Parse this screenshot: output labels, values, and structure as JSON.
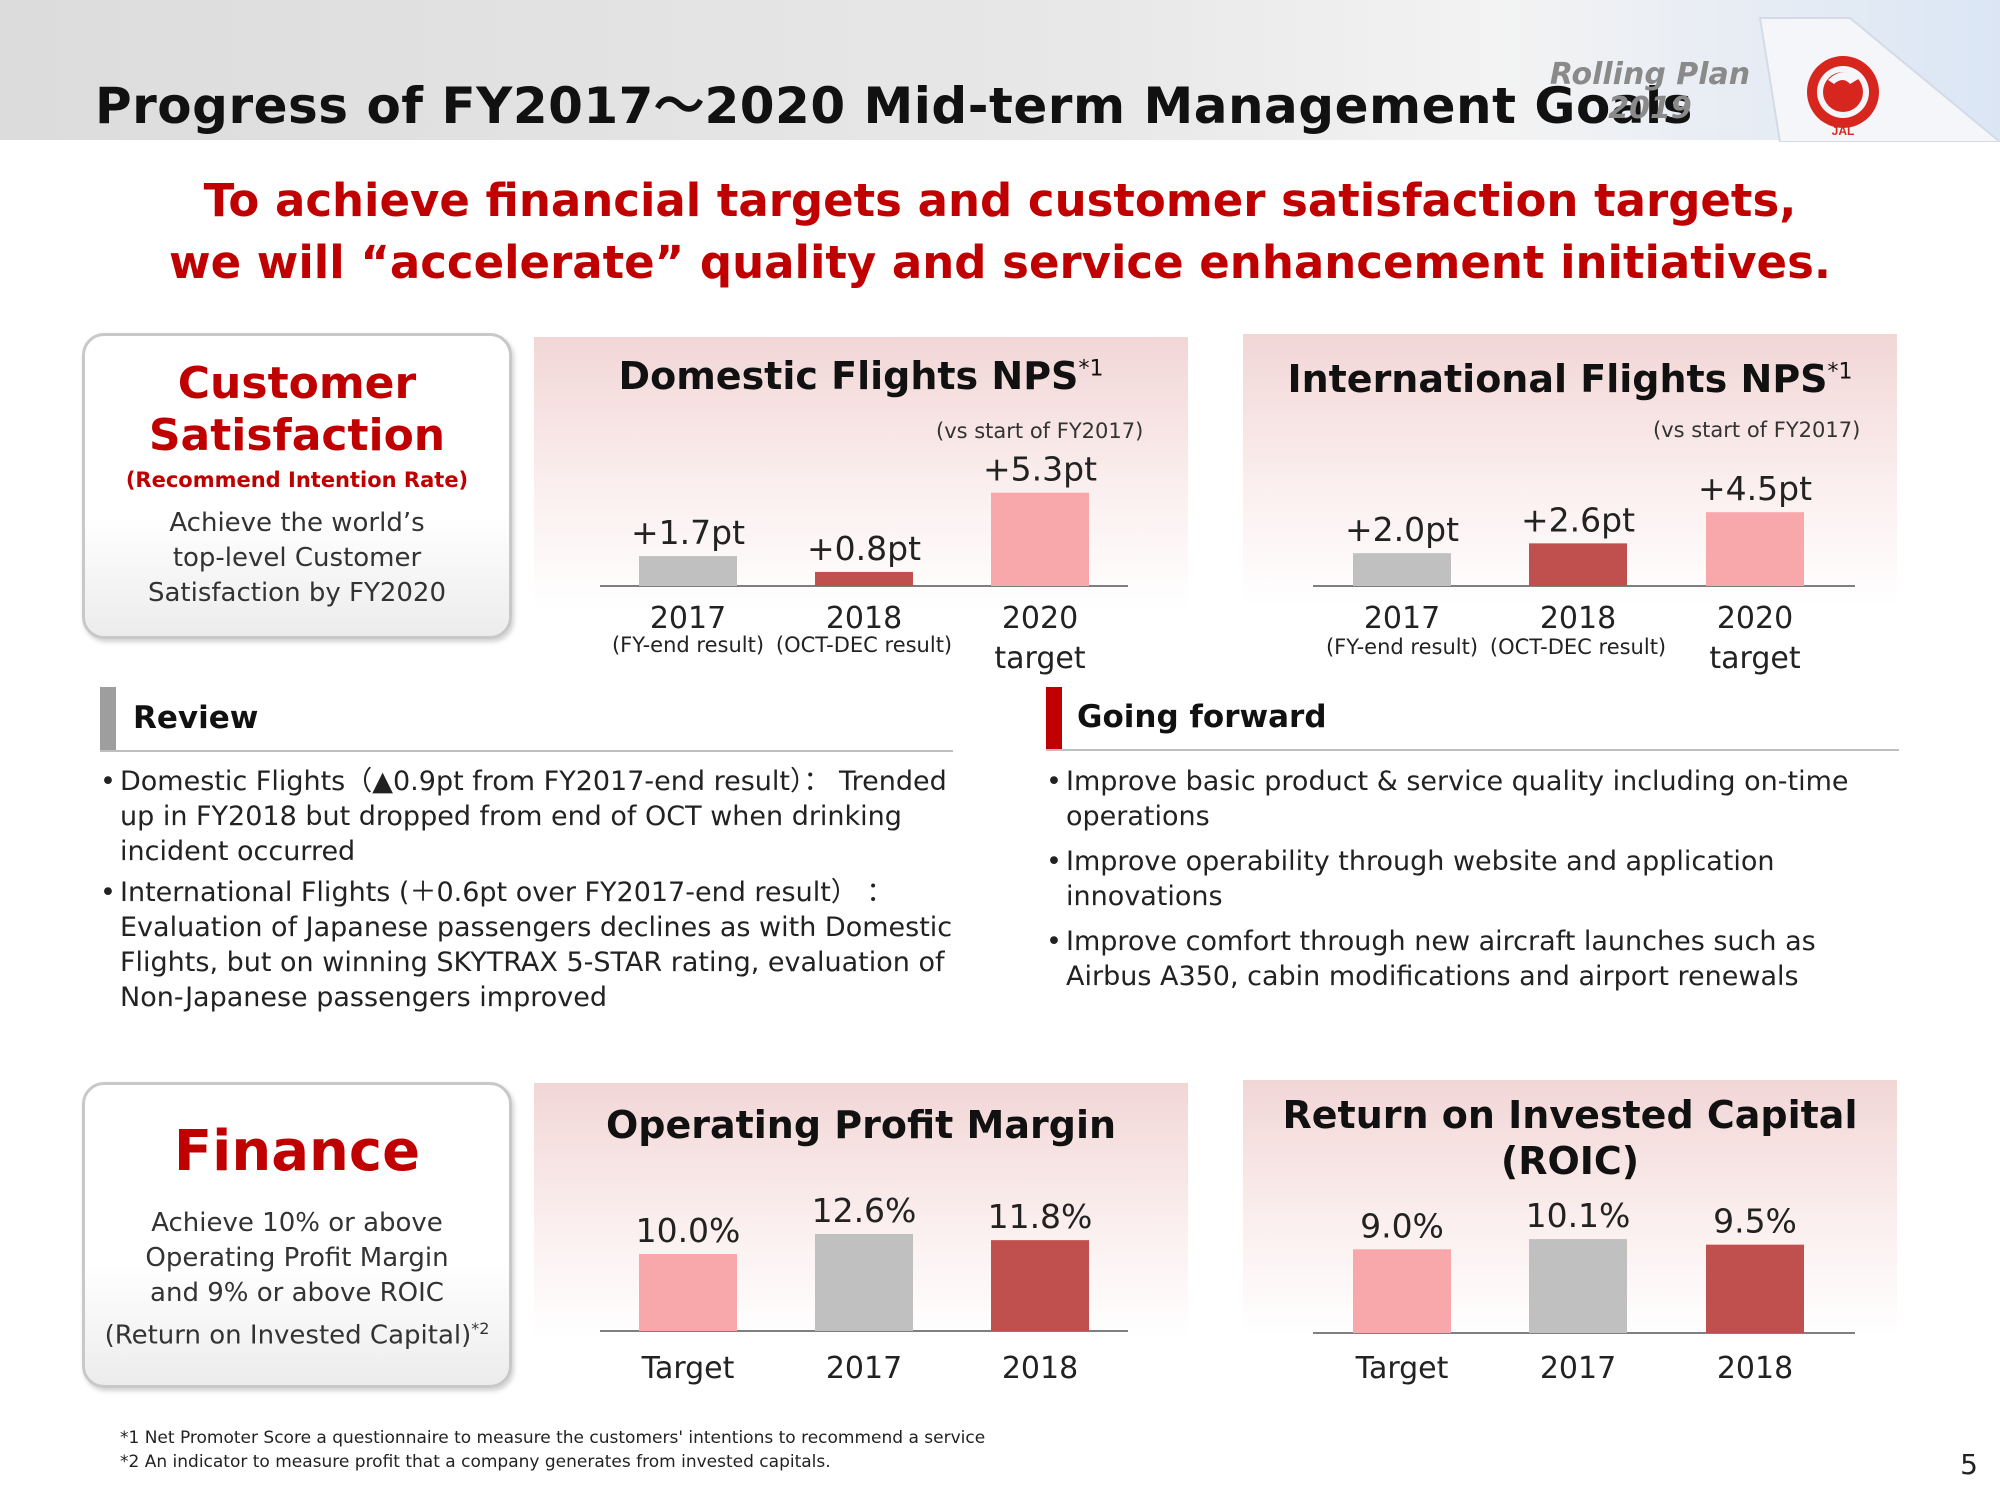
{
  "header": {
    "title": "Progress of FY2017～2020  Mid-term Management Goals",
    "rolling_plan": "Rolling Plan",
    "rolling_year": "2019",
    "logo_text": "JAL"
  },
  "headline": {
    "line1": "To achieve financial targets and customer satisfaction targets,",
    "line2": "we will “accelerate” quality and service enhancement initiatives."
  },
  "customer_card": {
    "title_line1": "Customer",
    "title_line2": "Satisfaction",
    "subtitle": "(Recommend Intention Rate)",
    "desc_line1": "Achieve the world’s",
    "desc_line2": "top-level Customer",
    "desc_line3": "Satisfaction by FY2020"
  },
  "finance_card": {
    "title": "Finance",
    "desc_line1": "Achieve 10% or above",
    "desc_line2": "Operating Profit Margin",
    "desc_line3": "and 9% or above ROIC",
    "desc_line4": "(Return on Invested Capital)",
    "desc_note": "*2"
  },
  "colors": {
    "gray": "#c0c0c0",
    "dark_red": "#c0504d",
    "pink": "#f8a8aa",
    "accent_red": "#c00000"
  },
  "chart_data": [
    {
      "type": "bar",
      "id": "domestic",
      "title": "Domestic Flights NPS",
      "title_note": "*1",
      "note": "(vs start of FY2017)",
      "categories": [
        "2017",
        "2018",
        "2020"
      ],
      "sublabels": [
        "(FY-end result)",
        "(OCT-DEC result)",
        "target"
      ],
      "values": [
        1.7,
        0.8,
        5.3
      ],
      "labels": [
        "+1.7pt",
        "+0.8pt",
        "+5.3pt"
      ],
      "colors": [
        "#c0c0c0",
        "#c0504d",
        "#f8a8aa"
      ],
      "ylim": [
        0,
        5.5
      ]
    },
    {
      "type": "bar",
      "id": "international",
      "title": "International Flights NPS",
      "title_note": "*1",
      "note": "(vs start of FY2017)",
      "categories": [
        "2017",
        "2018",
        "2020"
      ],
      "sublabels": [
        "(FY-end result)",
        "(OCT-DEC result)",
        "target"
      ],
      "values": [
        2.0,
        2.6,
        4.5
      ],
      "labels": [
        "+2.0pt",
        "+2.6pt",
        "+4.5pt"
      ],
      "colors": [
        "#c0c0c0",
        "#c0504d",
        "#f8a8aa"
      ],
      "ylim": [
        0,
        5.5
      ]
    },
    {
      "type": "bar",
      "id": "opm",
      "title": "Operating Profit Margin",
      "categories": [
        "Target",
        "2017",
        "2018"
      ],
      "values": [
        10.0,
        12.6,
        11.8
      ],
      "labels": [
        "10.0%",
        "12.6%",
        "11.8%"
      ],
      "colors": [
        "#f8a8aa",
        "#c0c0c0",
        "#c0504d"
      ],
      "ylim": [
        0,
        13
      ]
    },
    {
      "type": "bar",
      "id": "roic",
      "title": "Return on Invested Capital",
      "title2": "(ROIC)",
      "categories": [
        "Target",
        "2017",
        "2018"
      ],
      "values": [
        9.0,
        10.1,
        9.5
      ],
      "labels": [
        "9.0%",
        "10.1%",
        "9.5%"
      ],
      "colors": [
        "#f8a8aa",
        "#c0c0c0",
        "#c0504d"
      ],
      "ylim": [
        0,
        10.5
      ]
    }
  ],
  "review": {
    "heading": "Review",
    "items": [
      "Domestic Flights（▲0.9pt from FY2017-end result）： Trended up in FY2018 but dropped from end of OCT when drinking incident occurred",
      "International Flights (＋0.6pt over FY2017-end result） ： Evaluation of Japanese passengers declines as with Domestic Flights, but on winning SKYTRAX 5-STAR rating, evaluation of Non-Japanese passengers improved"
    ]
  },
  "forward": {
    "heading": "Going forward",
    "items": [
      "Improve basic product & service quality including on-time operations",
      "Improve operability through website and application innovations",
      "Improve comfort through new aircraft launches  such as Airbus A350, cabin modifications and airport renewals"
    ]
  },
  "footnotes": {
    "note1": "*1 Net Promoter Score a questionnaire to measure the customers' intentions to recommend a service",
    "note2": "*2 An indicator to measure profit that a company generates from invested capitals."
  },
  "page_number": "5"
}
